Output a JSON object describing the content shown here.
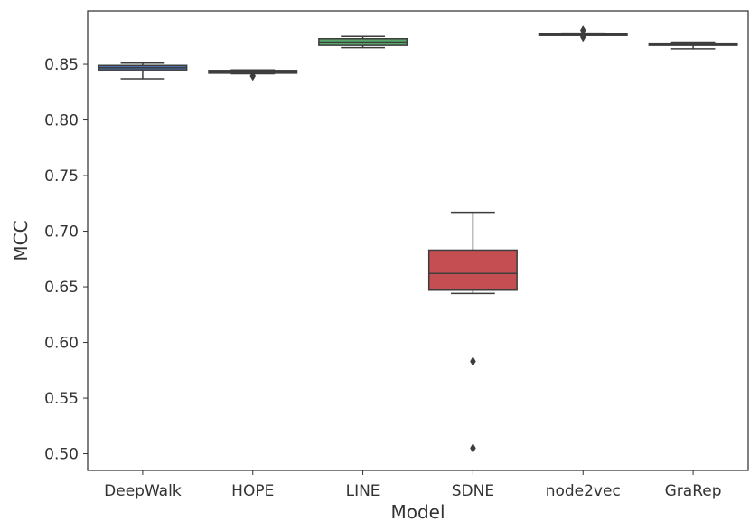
{
  "chart_data": {
    "type": "box",
    "xlabel": "Model",
    "ylabel": "MCC",
    "ylim": [
      0.485,
      0.898
    ],
    "yticks": [
      0.5,
      0.55,
      0.6,
      0.65,
      0.7,
      0.75,
      0.8,
      0.85
    ],
    "ytick_labels": [
      "0.50",
      "0.55",
      "0.60",
      "0.65",
      "0.70",
      "0.75",
      "0.80",
      "0.85"
    ],
    "grid": false,
    "categories": [
      "DeepWalk",
      "HOPE",
      "LINE",
      "SDNE",
      "node2vec",
      "GraRep"
    ],
    "boxes": [
      {
        "name": "DeepWalk",
        "color": "#4c72b0",
        "whisker_low": 0.837,
        "q1": 0.845,
        "median": 0.847,
        "q3": 0.849,
        "whisker_high": 0.851,
        "outliers": []
      },
      {
        "name": "HOPE",
        "color": "#dd8452",
        "whisker_low": 0.8415,
        "q1": 0.842,
        "median": 0.843,
        "q3": 0.8445,
        "whisker_high": 0.845,
        "outliers": [
          0.8395
        ]
      },
      {
        "name": "LINE",
        "color": "#55a868",
        "whisker_low": 0.865,
        "q1": 0.867,
        "median": 0.87,
        "q3": 0.873,
        "whisker_high": 0.875,
        "outliers": []
      },
      {
        "name": "SDNE",
        "color": "#c44e52",
        "whisker_low": 0.644,
        "q1": 0.647,
        "median": 0.662,
        "q3": 0.683,
        "whisker_high": 0.717,
        "outliers": [
          0.583,
          0.505
        ]
      },
      {
        "name": "node2vec",
        "color": "#8172b3",
        "whisker_low": 0.8765,
        "q1": 0.877,
        "median": 0.877,
        "q3": 0.8775,
        "whisker_high": 0.878,
        "outliers": [
          0.8745,
          0.8805
        ]
      },
      {
        "name": "GraRep",
        "color": "#937860",
        "whisker_low": 0.864,
        "q1": 0.867,
        "median": 0.868,
        "q3": 0.869,
        "whisker_high": 0.87,
        "outliers": []
      }
    ]
  }
}
